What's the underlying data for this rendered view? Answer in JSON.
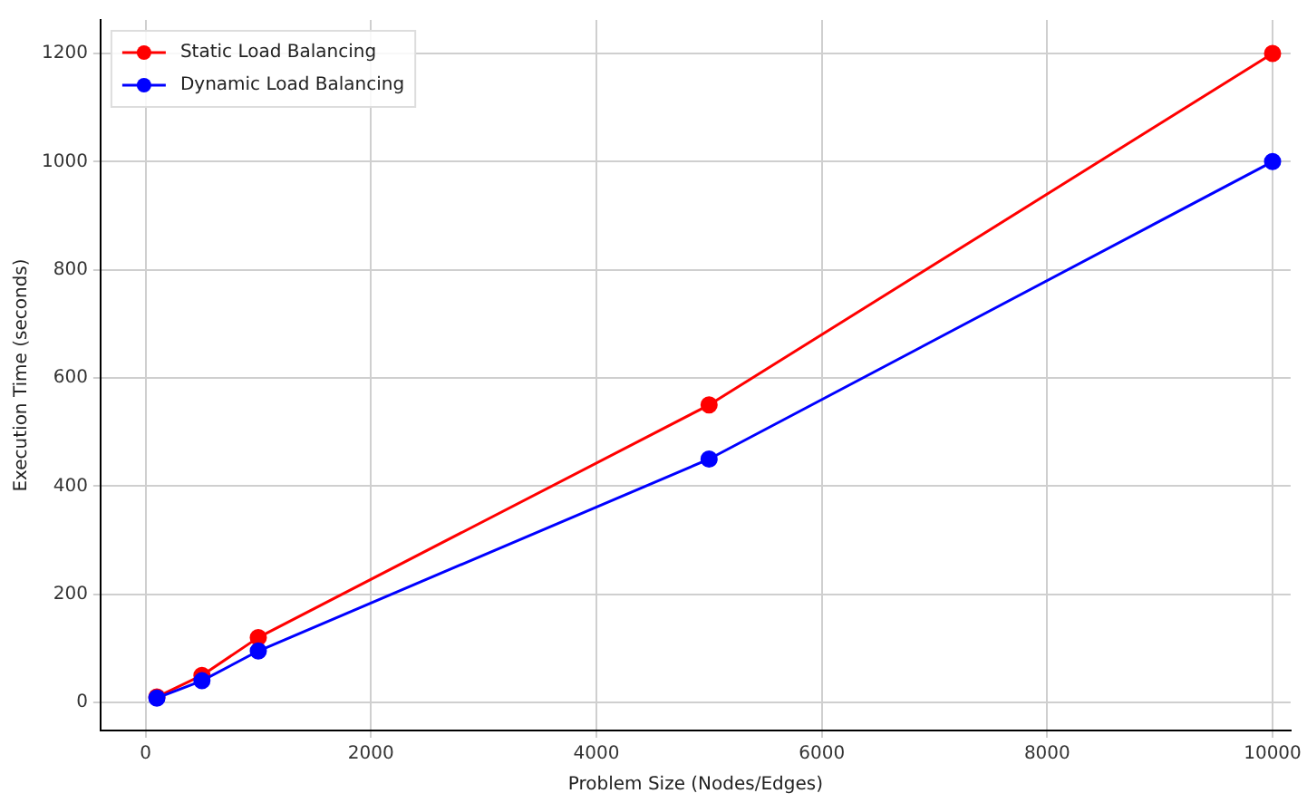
{
  "chart_data": {
    "type": "line",
    "xlabel": "Problem Size (Nodes/Edges)",
    "ylabel": "Execution Time (seconds)",
    "x": [
      100,
      500,
      1000,
      5000,
      10000
    ],
    "series": [
      {
        "name": "Static Load Balancing",
        "color": "#ff0000",
        "values": [
          10,
          50,
          120,
          550,
          1200
        ]
      },
      {
        "name": "Dynamic Load Balancing",
        "color": "#0000ff",
        "values": [
          8,
          40,
          95,
          450,
          1000
        ]
      }
    ],
    "xlim": [
      -400,
      10160
    ],
    "xticks": [
      0,
      2000,
      4000,
      6000,
      8000,
      10000
    ],
    "ylim": [
      -52,
      1262
    ],
    "yticks": [
      0,
      200,
      400,
      600,
      800,
      1000,
      1200
    ],
    "grid": true,
    "legend": "top left",
    "marker": "circle",
    "line_style": "solid"
  }
}
